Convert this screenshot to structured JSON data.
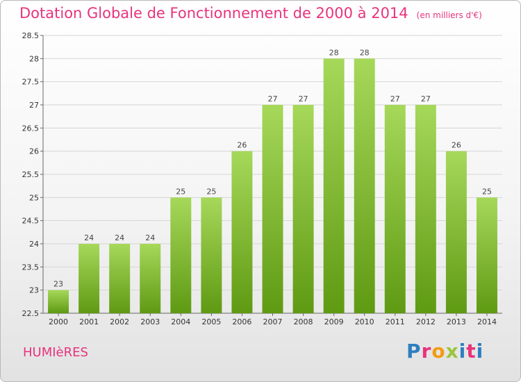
{
  "header": {
    "title": "Dotation Globale de Fonctionnement de 2000 à 2014",
    "subtitle": "(en milliers d'€)"
  },
  "footer": {
    "commune": "HUMIèRES",
    "logo": [
      "P",
      "r",
      "o",
      "x",
      "i",
      "t",
      "i"
    ]
  },
  "colors": {
    "title": "#e8337c",
    "bar_top": "#a6d85a",
    "bar_bottom": "#5f9a13",
    "grid": "#d5d5d5"
  },
  "chart_data": {
    "type": "bar",
    "title": "Dotation Globale de Fonctionnement de 2000 à 2014",
    "subtitle": "(en milliers d'€)",
    "categories": [
      "2000",
      "2001",
      "2002",
      "2003",
      "2004",
      "2005",
      "2006",
      "2007",
      "2008",
      "2009",
      "2010",
      "2011",
      "2012",
      "2013",
      "2014"
    ],
    "values": [
      23,
      24,
      24,
      24,
      25,
      25,
      26,
      27,
      27,
      28,
      28,
      27,
      27,
      26,
      25
    ],
    "ylim": [
      22.5,
      28.5
    ],
    "yticks": [
      "22.5",
      "23",
      "23.5",
      "24",
      "24.5",
      "25",
      "25.5",
      "26",
      "26.5",
      "27",
      "27.5",
      "28",
      "28.5"
    ],
    "grid": true,
    "legend": "none"
  }
}
